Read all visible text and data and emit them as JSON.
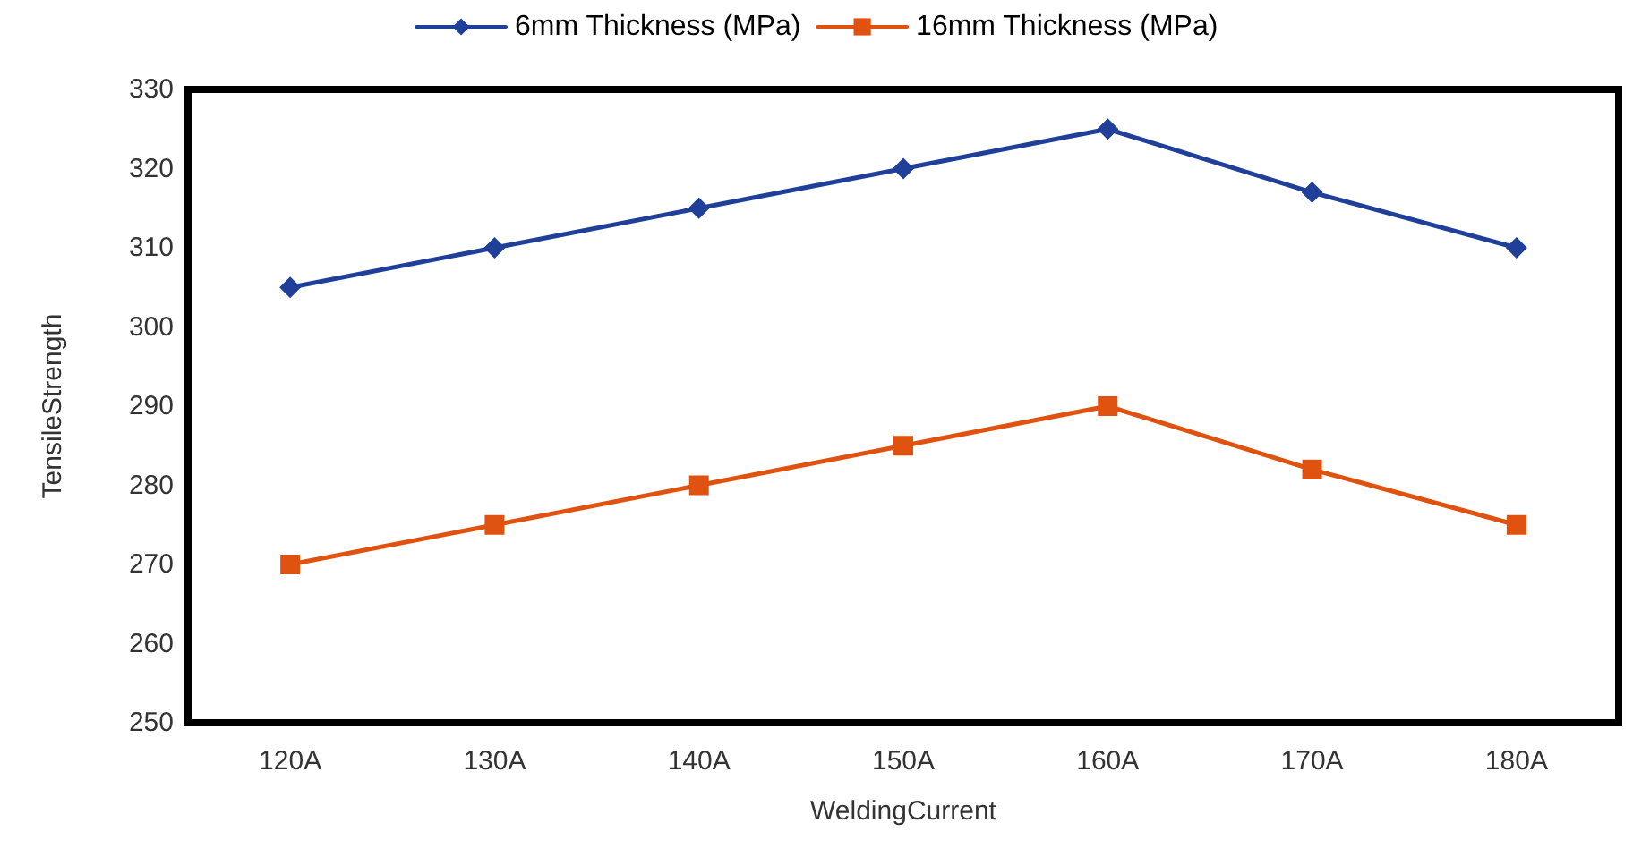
{
  "chart_data": {
    "type": "line",
    "xlabel": "WeldingCurrent",
    "ylabel": "TensileStrength",
    "categories": [
      "120A",
      "130A",
      "140A",
      "150A",
      "160A",
      "170A",
      "180A"
    ],
    "series": [
      {
        "name": "6mm Thickness (MPa)",
        "color": "#1f3f99",
        "marker": "diamond",
        "values": [
          305,
          310,
          315,
          320,
          325,
          317,
          310
        ]
      },
      {
        "name": "16mm Thickness (MPa)",
        "color": "#e0520f",
        "marker": "square",
        "values": [
          270,
          275,
          280,
          285,
          290,
          282,
          275
        ]
      }
    ],
    "ylim": [
      250,
      330
    ],
    "yticks": [
      250,
      260,
      270,
      280,
      290,
      300,
      310,
      320,
      330
    ],
    "grid": false,
    "legend": "top",
    "line_style": "solid"
  }
}
